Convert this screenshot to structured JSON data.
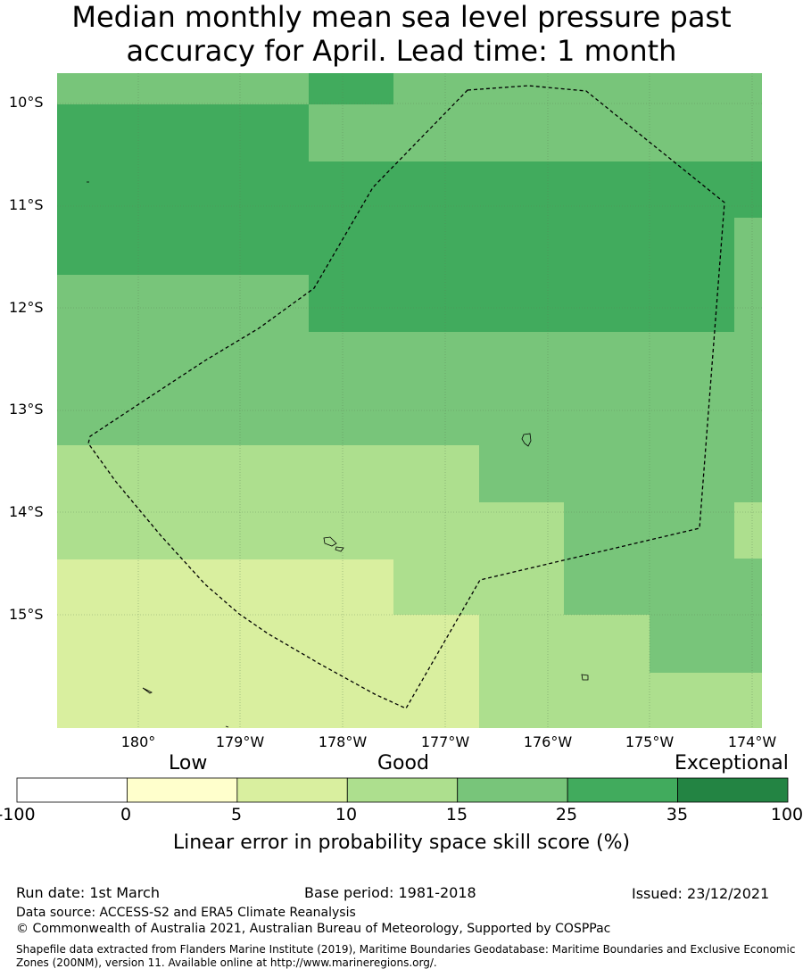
{
  "title_line1": "Median monthly mean sea level pressure past",
  "title_line2": "accuracy for April. Lead time: 1 month",
  "map": {
    "lat_labels": [
      "10°S",
      "11°S",
      "12°S",
      "13°S",
      "14°S",
      "15°S"
    ],
    "lon_labels": [
      "180°",
      "179°W",
      "178°W",
      "177°W",
      "176°W",
      "175°W",
      "174°W"
    ],
    "colors": {
      "5-10": "#d9ef9f",
      "10-15": "#addf8e",
      "15-25": "#78c57a",
      "25-35": "#41ab5d"
    }
  },
  "legend": {
    "category_low": "Low",
    "category_good": "Good",
    "category_exceptional": "Exceptional",
    "ticks": [
      "-100",
      "0",
      "5",
      "10",
      "15",
      "25",
      "35",
      "100"
    ],
    "bins": [
      {
        "range": "-100 to 0",
        "color": "#ffffff"
      },
      {
        "range": "0 to 5",
        "color": "#ffffcc"
      },
      {
        "range": "5 to 10",
        "color": "#d9ef9f"
      },
      {
        "range": "10 to 15",
        "color": "#addf8e"
      },
      {
        "range": "15 to 25",
        "color": "#78c57a"
      },
      {
        "range": "25 to 35",
        "color": "#41ab5d"
      },
      {
        "range": "35 to 100",
        "color": "#238443"
      }
    ],
    "title": "Linear error in probability space skill score (%)"
  },
  "footer": {
    "run_date": "Run date: 1st March",
    "base_period": "Base period: 1981-2018",
    "issued": "Issued: 23/12/2021",
    "data_source": "Data source: ACCESS-S2 and ERA5 Climate Reanalysis",
    "copyright": "© Commonwealth of Australia 2021, Australian Bureau of Meteorology, Supported by COSPPac",
    "shapefile": "Shapefile data extracted from Flanders Marine Institute (2019), Maritime Boundaries Geodatabase: Maritime Boundaries and Exclusive Economic Zones (200NM), version 11. Available online at http://www.marineregions.org/."
  }
}
